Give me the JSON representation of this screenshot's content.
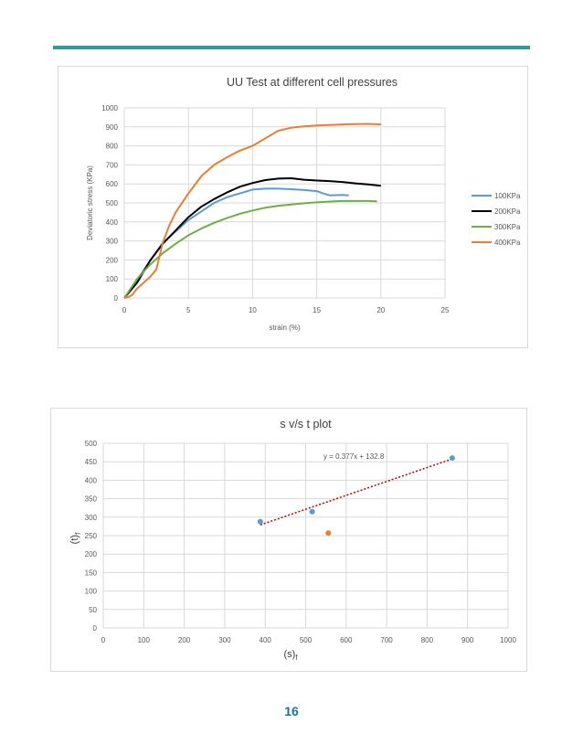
{
  "colors": {
    "rule": "#2a9d9a",
    "page_number": "#1f6fa0",
    "grid": "#d9d9d9",
    "axis_text": "#595959"
  },
  "page_number": "16",
  "chart_data": [
    {
      "type": "line",
      "title": "UU Test at different cell pressures",
      "xlabel": "strain (%)",
      "ylabel": "Deviatoric stress (KPa)",
      "xlim": [
        0,
        25
      ],
      "ylim": [
        0,
        1000
      ],
      "xticks": [
        0,
        5,
        10,
        15,
        20,
        25
      ],
      "yticks": [
        0,
        100,
        200,
        300,
        400,
        500,
        600,
        700,
        800,
        900,
        1000
      ],
      "grid": true,
      "legend": "right",
      "series": [
        {
          "name": "100KPa",
          "color": "#5b9bd5",
          "x": [
            0,
            1,
            2,
            3,
            4,
            5,
            6,
            7,
            8,
            9,
            10,
            11,
            12,
            13,
            14,
            15,
            15.5,
            16,
            17,
            17.5
          ],
          "y": [
            0,
            95,
            195,
            290,
            350,
            410,
            455,
            500,
            530,
            550,
            570,
            575,
            575,
            572,
            568,
            562,
            550,
            540,
            542,
            540
          ]
        },
        {
          "name": "200KPa",
          "color": "#000000",
          "x": [
            0,
            1,
            2,
            3,
            4,
            5,
            6,
            7,
            8,
            9,
            10,
            11,
            12,
            13,
            14,
            15,
            16,
            17,
            18,
            19,
            20
          ],
          "y": [
            0,
            80,
            195,
            285,
            355,
            425,
            480,
            520,
            555,
            585,
            605,
            620,
            628,
            630,
            622,
            618,
            615,
            610,
            603,
            597,
            590
          ]
        },
        {
          "name": "300KPa",
          "color": "#70ad47",
          "x": [
            0,
            1,
            2,
            3,
            4,
            5,
            6,
            7,
            8,
            9,
            10,
            11,
            12,
            13,
            14,
            15,
            16,
            17,
            18,
            19,
            19.7
          ],
          "y": [
            0,
            100,
            175,
            235,
            285,
            330,
            365,
            395,
            420,
            443,
            460,
            475,
            485,
            492,
            498,
            503,
            507,
            510,
            510,
            510,
            508
          ]
        },
        {
          "name": "400KPa",
          "color": "#ed7d31",
          "x": [
            0,
            0.3,
            0.6,
            1,
            1.5,
            2,
            2.5,
            3,
            3.5,
            4,
            5,
            6,
            7,
            8,
            9,
            10,
            11,
            12,
            13,
            14,
            15,
            16,
            17,
            18,
            19,
            20
          ],
          "y": [
            0,
            5,
            15,
            50,
            80,
            110,
            150,
            290,
            380,
            450,
            550,
            640,
            700,
            740,
            775,
            800,
            840,
            880,
            895,
            903,
            907,
            910,
            913,
            915,
            916,
            913
          ]
        }
      ]
    },
    {
      "type": "scatter",
      "title": "s v/s t plot",
      "xlabel": "(s)",
      "xlabel_sub": "f",
      "ylabel": "(t)",
      "ylabel_sub": "f",
      "xlim": [
        0,
        1000
      ],
      "ylim": [
        0,
        500
      ],
      "xticks": [
        0,
        100,
        200,
        300,
        400,
        500,
        600,
        700,
        800,
        900,
        1000
      ],
      "yticks": [
        0,
        50,
        100,
        150,
        200,
        250,
        300,
        350,
        400,
        450,
        500
      ],
      "grid": true,
      "series": [
        {
          "color": "#5b9bd5",
          "points": [
            [
              388,
              288
            ],
            [
              516,
              315
            ],
            [
              862,
              460
            ]
          ]
        },
        {
          "color": "#ed7d31",
          "points": [
            [
              556,
              257
            ]
          ]
        }
      ],
      "trendline": {
        "slope": 0.377,
        "intercept": 132.8,
        "x_range": [
          388,
          862
        ],
        "color": "#c00000",
        "label": "y = 0.377x + 132.8"
      }
    }
  ]
}
